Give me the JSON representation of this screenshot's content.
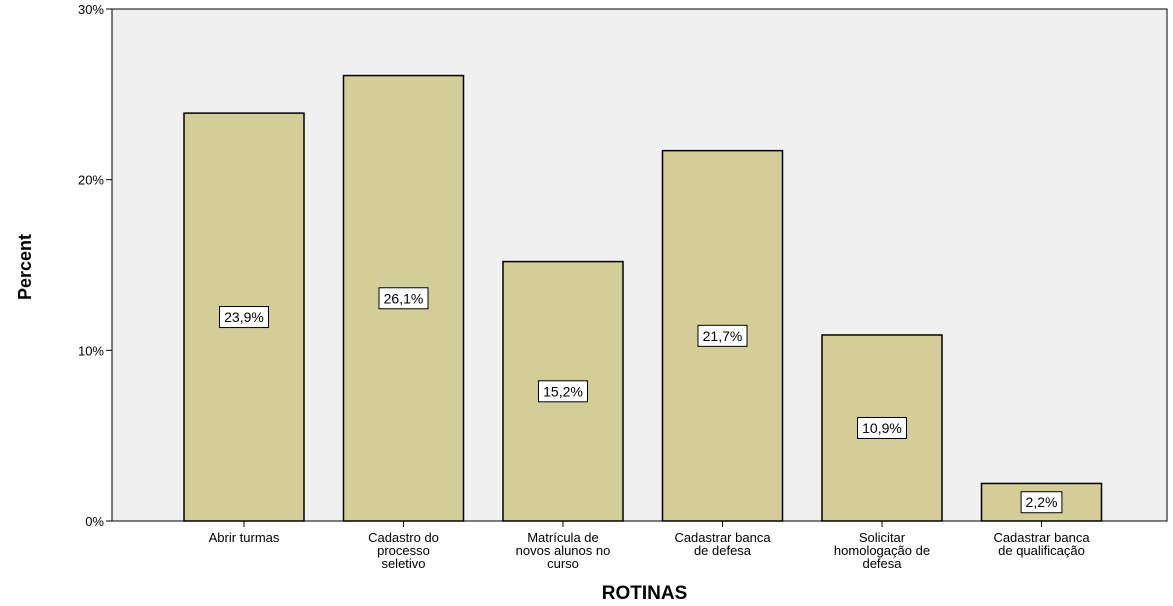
{
  "chart_data": {
    "type": "bar",
    "categories": [
      [
        "Abrir turmas"
      ],
      [
        "Cadastro do",
        "processo",
        "seletivo"
      ],
      [
        "Matrícula de",
        "novos alunos no",
        "curso"
      ],
      [
        "Cadastrar banca",
        "de defesa"
      ],
      [
        "Solicitar",
        "homologação de",
        "defesa"
      ],
      [
        "Cadastrar banca",
        "de qualificação"
      ]
    ],
    "values": [
      23.9,
      26.1,
      15.2,
      21.7,
      10.9,
      2.2
    ],
    "data_labels": [
      "23,9%",
      "26,1%",
      "15,2%",
      "21,7%",
      "10,9%",
      "2,2%"
    ],
    "xlabel": "ROTINAS",
    "ylabel": "Percent",
    "ylim": [
      0,
      30
    ],
    "yticks": [
      0,
      10,
      20,
      30
    ],
    "ytick_labels": [
      "0%",
      "10%",
      "20%",
      "30%"
    ],
    "grid": false,
    "colors": {
      "plot_background": "#f0f0f0",
      "bar_fill": "#d3ce97",
      "bar_stroke": "#000000",
      "label_box": "#ffffff"
    }
  }
}
